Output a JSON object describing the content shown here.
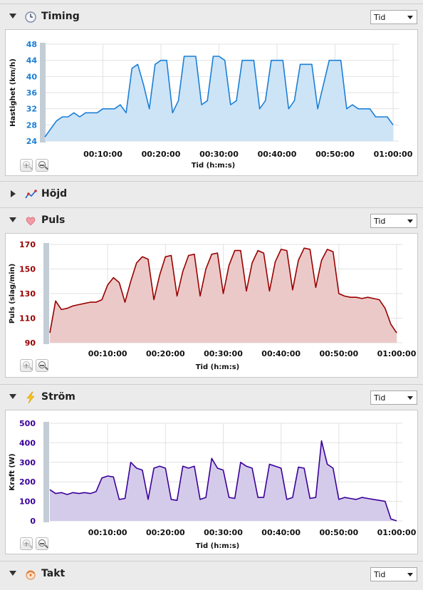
{
  "sections": {
    "timing": {
      "title": "Timing",
      "select": "Tid",
      "color": "#1b7fd6",
      "fill": "#cde4f7"
    },
    "height": {
      "title": "Höjd"
    },
    "pulse": {
      "title": "Puls",
      "select": "Tid",
      "color": "#990000",
      "fill": "#ecc9c9"
    },
    "power": {
      "title": "Ström",
      "select": "Tid",
      "color": "#3a0099",
      "fill": "#d4cbea"
    },
    "cadence": {
      "title": "Takt",
      "select": "Tid"
    }
  },
  "chart_data": [
    {
      "type": "area",
      "xlabel": "Tid (h:m:s)",
      "ylabel": "Hastighet (km/h)",
      "ylim": [
        24,
        48
      ],
      "yticks": [
        "48",
        "44",
        "40",
        "36",
        "32",
        "28",
        "24"
      ],
      "xticks": [
        "00:10:00",
        "00:20:00",
        "00:30:00",
        "00:40:00",
        "00:50:00",
        "01:00:00"
      ],
      "x_minutes": [
        0,
        1,
        2,
        3,
        4,
        5,
        6,
        7,
        8,
        9,
        10,
        11,
        12,
        13,
        14,
        15,
        16,
        17,
        18,
        19,
        20,
        21,
        22,
        23,
        24,
        25,
        26,
        27,
        28,
        29,
        30,
        31,
        32,
        33,
        34,
        35,
        36,
        37,
        38,
        39,
        40,
        41,
        42,
        43,
        44,
        45,
        46,
        47,
        48,
        49,
        50,
        51,
        52,
        53,
        54,
        55,
        56,
        57,
        58,
        59,
        60
      ],
      "values": [
        25,
        27,
        29,
        30,
        30,
        31,
        30,
        31,
        31,
        31,
        32,
        32,
        32,
        33,
        31,
        42,
        43,
        38,
        32,
        43,
        44,
        44,
        31,
        34,
        45,
        45,
        45,
        33,
        34,
        45,
        45,
        44,
        33,
        34,
        44,
        44,
        44,
        32,
        34,
        44,
        44,
        44,
        32,
        34,
        43,
        43,
        43,
        32,
        38,
        44,
        44,
        44,
        32,
        33,
        32,
        32,
        32,
        30,
        30,
        30,
        28
      ]
    },
    {
      "type": "area",
      "xlabel": "Tid (h:m:s)",
      "ylabel": "Puls (slag/min)",
      "ylim": [
        90,
        170
      ],
      "yticks": [
        "170",
        "150",
        "130",
        "110",
        "90"
      ],
      "xticks": [
        "00:10:00",
        "00:20:00",
        "00:30:00",
        "00:40:00",
        "00:50:00",
        "01:00:00"
      ],
      "x_minutes": [
        0,
        1,
        2,
        3,
        4,
        5,
        6,
        7,
        8,
        9,
        10,
        11,
        12,
        13,
        14,
        15,
        16,
        17,
        18,
        19,
        20,
        21,
        22,
        23,
        24,
        25,
        26,
        27,
        28,
        29,
        30,
        31,
        32,
        33,
        34,
        35,
        36,
        37,
        38,
        39,
        40,
        41,
        42,
        43,
        44,
        45,
        46,
        47,
        48,
        49,
        50,
        51,
        52,
        53,
        54,
        55,
        56,
        57,
        58,
        59,
        60
      ],
      "values": [
        98,
        124,
        117,
        118,
        120,
        121,
        122,
        123,
        123,
        125,
        137,
        143,
        139,
        123,
        140,
        155,
        160,
        158,
        125,
        145,
        160,
        161,
        128,
        148,
        161,
        162,
        128,
        150,
        162,
        163,
        130,
        153,
        165,
        165,
        132,
        155,
        165,
        163,
        132,
        156,
        166,
        165,
        133,
        157,
        167,
        166,
        135,
        157,
        166,
        164,
        130,
        128,
        127,
        127,
        126,
        127,
        126,
        125,
        118,
        105,
        98
      ]
    },
    {
      "type": "area",
      "xlabel": "Tid (h:m:s)",
      "ylabel": "Kraft (W)",
      "ylim": [
        0,
        500
      ],
      "yticks": [
        "500",
        "400",
        "300",
        "200",
        "100",
        "0"
      ],
      "xticks": [
        "00:10:00",
        "00:20:00",
        "00:30:00",
        "00:40:00",
        "00:50:00",
        "01:00:00"
      ],
      "x_minutes": [
        0,
        1,
        2,
        3,
        4,
        5,
        6,
        7,
        8,
        9,
        10,
        11,
        12,
        13,
        14,
        15,
        16,
        17,
        18,
        19,
        20,
        21,
        22,
        23,
        24,
        25,
        26,
        27,
        28,
        29,
        30,
        31,
        32,
        33,
        34,
        35,
        36,
        37,
        38,
        39,
        40,
        41,
        42,
        43,
        44,
        45,
        46,
        47,
        48,
        49,
        50,
        51,
        52,
        53,
        54,
        55,
        56,
        57,
        58,
        59,
        60
      ],
      "values": [
        160,
        140,
        145,
        135,
        145,
        140,
        145,
        140,
        150,
        220,
        230,
        225,
        110,
        115,
        300,
        270,
        260,
        110,
        270,
        280,
        270,
        110,
        105,
        280,
        270,
        280,
        110,
        120,
        320,
        270,
        260,
        120,
        115,
        300,
        280,
        270,
        120,
        120,
        290,
        280,
        270,
        110,
        120,
        275,
        270,
        115,
        120,
        410,
        290,
        270,
        110,
        120,
        115,
        110,
        120,
        115,
        110,
        105,
        100,
        10,
        0
      ]
    }
  ]
}
